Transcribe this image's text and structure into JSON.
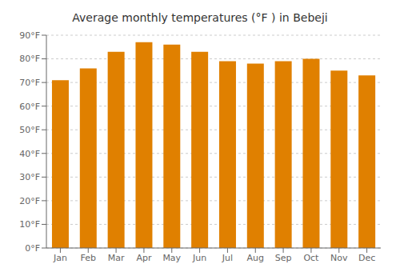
{
  "chart_data": {
    "type": "bar",
    "title": "Average monthly temperatures (°F ) in Bebeji",
    "categories": [
      "Jan",
      "Feb",
      "Mar",
      "Apr",
      "May",
      "Jun",
      "Jul",
      "Aug",
      "Sep",
      "Oct",
      "Nov",
      "Dec"
    ],
    "values": [
      71,
      76,
      83,
      87,
      86,
      83,
      79,
      78,
      79,
      80,
      75,
      73
    ],
    "color": "#E08000",
    "ylim": [
      0,
      90
    ],
    "yticks": [
      {
        "value": 0,
        "label": "0°F"
      },
      {
        "value": 10,
        "label": "10°F"
      },
      {
        "value": 20,
        "label": "20°F"
      },
      {
        "value": 30,
        "label": "30°F"
      },
      {
        "value": 40,
        "label": "40°F"
      },
      {
        "value": 50,
        "label": "50°F"
      },
      {
        "value": 60,
        "label": "60°F"
      },
      {
        "value": 70,
        "label": "70°F"
      },
      {
        "value": 80,
        "label": "80°F"
      },
      {
        "value": 90,
        "label": "90°F"
      }
    ],
    "grid": true
  }
}
